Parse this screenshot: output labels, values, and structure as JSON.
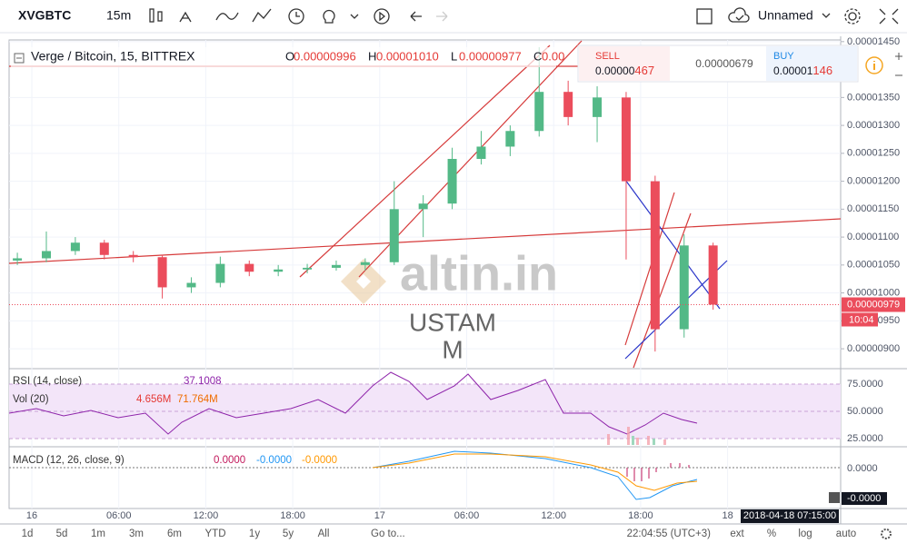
{
  "toolbar": {
    "symbol": "XVGBTC",
    "interval": "15m",
    "layout_name": "Unnamed"
  },
  "chart_data": {
    "type": "candlestick",
    "title": "Verge / Bitcoin, 15, BITTREX",
    "ohlc_legend": [
      "O",
      "0.00000996",
      "H",
      "0.00001010",
      "L",
      "0.00000977",
      "C",
      "0.00"
    ],
    "x": [
      -1,
      1,
      3,
      5,
      7,
      9,
      11,
      13,
      15,
      17,
      19,
      21,
      23,
      25,
      27,
      29,
      31,
      33,
      35,
      37,
      39,
      41,
      43,
      45,
      47
    ],
    "open": [
      1.058e-05,
      1.062e-05,
      1.075e-05,
      1.09e-05,
      1.068e-05,
      1.064e-05,
      1.01e-05,
      1.018e-05,
      1.052e-05,
      1.038e-05,
      1.042e-05,
      1.045e-05,
      1.05e-05,
      1.055e-05,
      1.15e-05,
      1.16e-05,
      1.24e-05,
      1.262e-05,
      1.29e-05,
      1.36e-05,
      1.315e-05,
      1.35e-05,
      1.2e-05,
      9.35e-06,
      1.085e-05
    ],
    "high": [
      1.072e-05,
      1.11e-05,
      1.1e-05,
      1.095e-05,
      1.075e-05,
      1.068e-05,
      1.028e-05,
      1.065e-05,
      1.058e-05,
      1.05e-05,
      1.052e-05,
      1.058e-05,
      1.062e-05,
      1.2e-05,
      1.175e-05,
      1.26e-05,
      1.29e-05,
      1.3e-05,
      1.44e-05,
      1.38e-05,
      1.37e-05,
      1.36e-05,
      1.21e-05,
      1.105e-05,
      1.09e-05
    ],
    "low": [
      1.05e-05,
      1.055e-05,
      1.068e-05,
      1.06e-05,
      1.055e-05,
      9.9e-06,
      1e-05,
      1.01e-05,
      1.03e-05,
      1.03e-05,
      1.035e-05,
      1.04e-05,
      1.04e-05,
      1.05e-05,
      1.1e-05,
      1.15e-05,
      1.23e-05,
      1.245e-05,
      1.28e-05,
      1.3e-05,
      1.27e-05,
      1.06e-05,
      8.95e-06,
      9.2e-06,
      9.7e-06
    ],
    "close": [
      1.062e-05,
      1.075e-05,
      1.09e-05,
      1.068e-05,
      1.064e-05,
      1.01e-05,
      1.018e-05,
      1.052e-05,
      1.038e-05,
      1.042e-05,
      1.045e-05,
      1.05e-05,
      1.055e-05,
      1.15e-05,
      1.16e-05,
      1.24e-05,
      1.262e-05,
      1.29e-05,
      1.36e-05,
      1.315e-05,
      1.35e-05,
      1.2e-05,
      9.35e-06,
      1.085e-05,
      9.79e-06
    ],
    "up_color": "#53b987",
    "down_color": "#eb4d5c",
    "xlim": [
      -1.57,
      55.8
    ],
    "xticks": [
      {
        "value": 0,
        "label": "16"
      },
      {
        "value": 6,
        "label": "06:00"
      },
      {
        "value": 12,
        "label": "12:00"
      },
      {
        "value": 18,
        "label": "18:00"
      },
      {
        "value": 24,
        "label": "17"
      },
      {
        "value": 30,
        "label": "06:00"
      },
      {
        "value": 36,
        "label": "12:00"
      },
      {
        "value": 42,
        "label": "18:00"
      },
      {
        "value": 48,
        "label": "18"
      }
    ],
    "ylim": [
      8.66e-06,
      1.453e-05
    ],
    "yticks": [
      {
        "value": 1.45e-05,
        "label": "0.00001450"
      },
      {
        "value": 1.35e-05,
        "label": "0.00001350"
      },
      {
        "value": 1.3e-05,
        "label": "0.00001300"
      },
      {
        "value": 1.25e-05,
        "label": "0.00001250"
      },
      {
        "value": 1.2e-05,
        "label": "0.00001200"
      },
      {
        "value": 1.15e-05,
        "label": "0.00001150"
      },
      {
        "value": 1.1e-05,
        "label": "0.00001100"
      },
      {
        "value": 1.05e-05,
        "label": "0.00001050"
      },
      {
        "value": 1e-05,
        "label": "0.00001000"
      },
      {
        "value": 9.5e-06,
        "label": "0.00000950"
      },
      {
        "value": 9e-06,
        "label": "0.00000900"
      }
    ],
    "grid": true,
    "last_price": {
      "value": 9.79e-06,
      "label": "0.00000979"
    },
    "countdown": "10:04",
    "crosshair_date": "2018-04-18 07:15:00"
  },
  "trade_panel": {
    "sell_label": "SELL",
    "sell_price": "0.00000",
    "sell_price_big": "467",
    "spread": "0.00000679",
    "buy_label": "BUY",
    "buy_price": "0.00001",
    "buy_price_big": "146"
  },
  "watermark": {
    "brand": "altin.in",
    "line1": "USTAM",
    "line2": "M"
  },
  "indicators": {
    "rsi": {
      "label": "RSI (14, close)",
      "value": "37.1008",
      "ylim": [
        19.2,
        88.3
      ],
      "yticks": [
        {
          "value": 75,
          "label": "75.0000"
        },
        {
          "value": 50,
          "label": "50.0000"
        },
        {
          "value": 25,
          "label": "25.0000"
        }
      ]
    },
    "vol": {
      "label": "Vol (20)",
      "values": [
        "4.656M",
        "71.764M"
      ]
    },
    "macd": {
      "label": "MACD (12, 26, close, 9)",
      "values": [
        "0.0000",
        "-0.0000",
        "-0.0000"
      ],
      "axis_label": "0.0000",
      "axis_tag": "-0.0000"
    }
  },
  "bottom_bar": {
    "ranges": [
      "1d",
      "5d",
      "1m",
      "3m",
      "6m",
      "YTD",
      "1y",
      "5y",
      "All"
    ],
    "goto": "Go to...",
    "clock": "22:04:55 (UTC+3)",
    "options": [
      "ext",
      "%",
      "log",
      "auto"
    ]
  }
}
